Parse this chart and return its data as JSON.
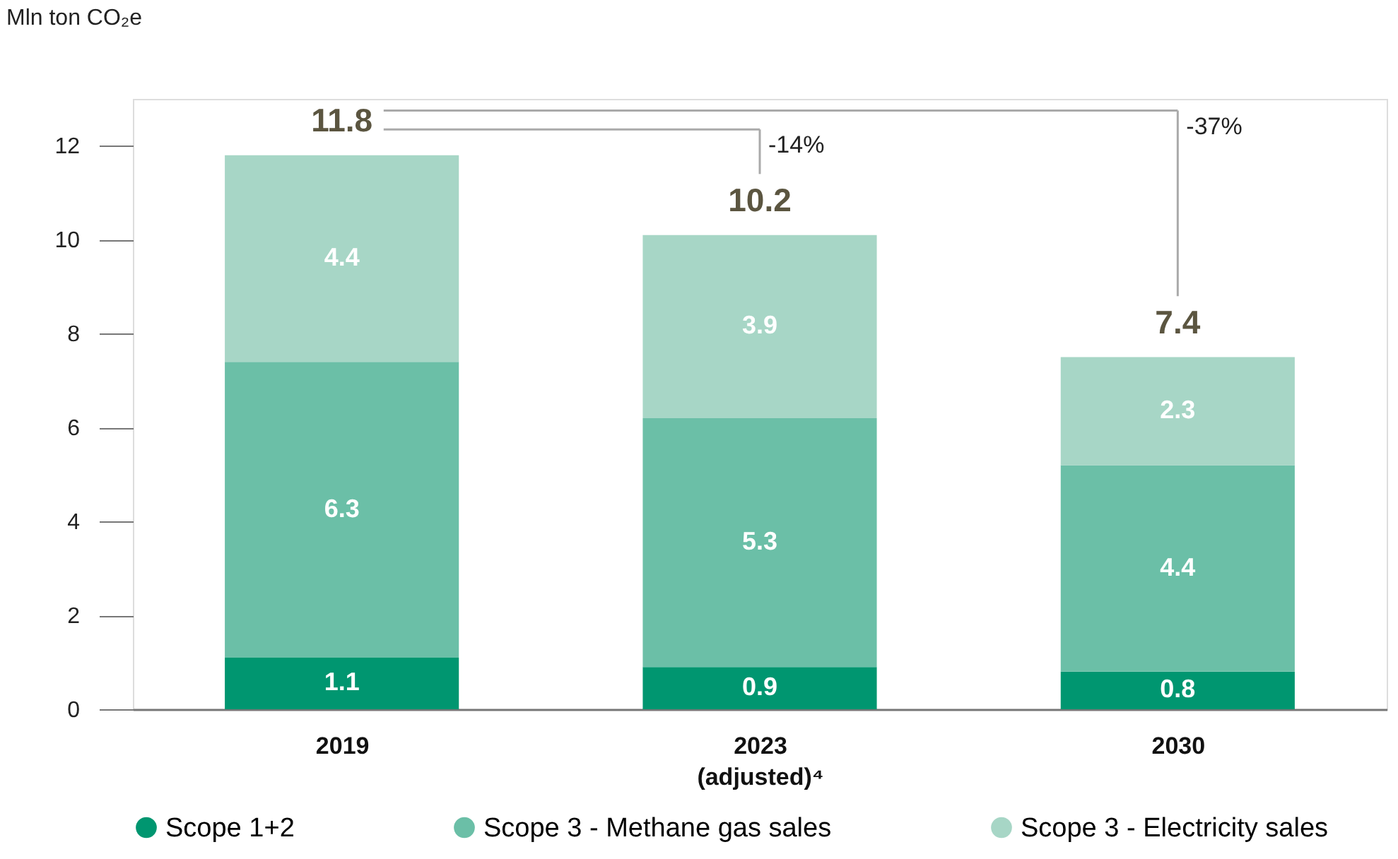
{
  "chart_data": {
    "type": "bar",
    "stacked": true,
    "ylabel": "Mln ton CO₂e",
    "categories": [
      "2019",
      "2023\n(adjusted)⁴",
      "2030"
    ],
    "series": [
      {
        "name": "Scope 1+2",
        "color": "#009670",
        "values": [
          1.1,
          0.9,
          0.8
        ]
      },
      {
        "name": "Scope 3 - Methane gas sales",
        "color": "#6bbfa7",
        "values": [
          6.3,
          5.3,
          4.4
        ]
      },
      {
        "name": "Scope 3 - Electricity sales",
        "color": "#a7d6c6",
        "values": [
          4.4,
          3.9,
          2.3
        ]
      }
    ],
    "totals": [
      "11.8",
      "10.2",
      "7.4"
    ],
    "annotations": [
      "-14%",
      "-37%"
    ],
    "data_labels": true,
    "ylim": [
      0,
      13
    ],
    "yticks": [
      0,
      2,
      4,
      6,
      8,
      10,
      12
    ],
    "grid": false,
    "legend": "bottom"
  }
}
